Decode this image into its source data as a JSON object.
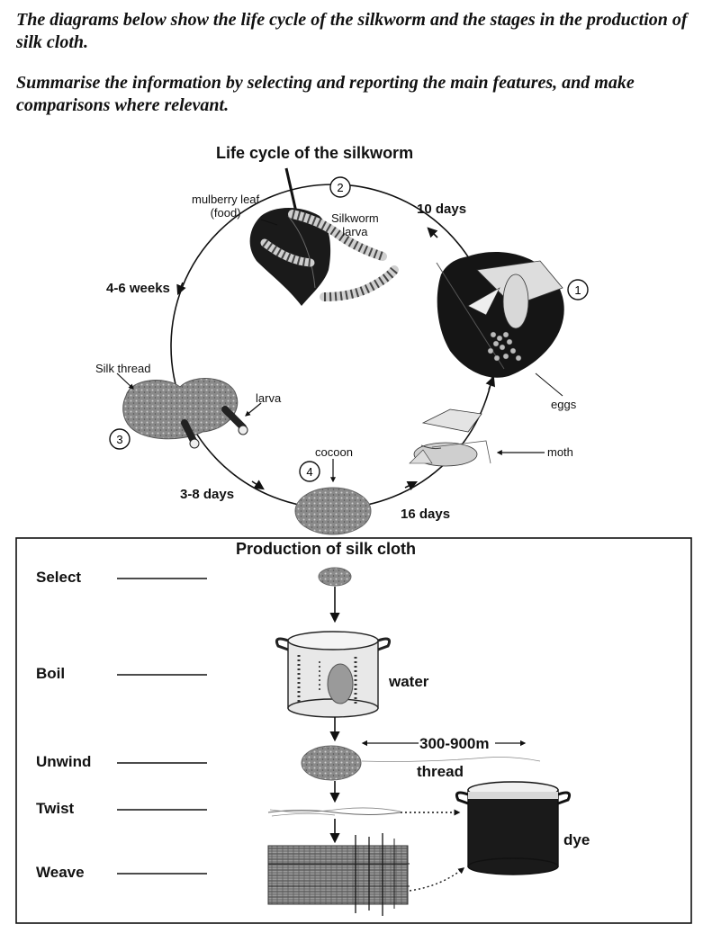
{
  "prompt": {
    "line1": "The diagrams below show the life cycle of the silkworm and the stages in the production of silk cloth.",
    "line2": "Summarise the information by selecting and reporting the main features, and make comparisons where relevant."
  },
  "life_cycle": {
    "title": "Life cycle of the silkworm",
    "stage_numbers": [
      "1",
      "2",
      "3",
      "4"
    ],
    "durations": {
      "eggs_to_larva": "10 days",
      "larva_to_thread": "4-6 weeks",
      "thread_to_cocoon": "3-8 days",
      "cocoon_to_moth": "16 days"
    },
    "labels": {
      "mulberry_leaf": "mulberry leaf\n(food)",
      "silkworm_larva": "Silkworm\nlarva",
      "eggs": "eggs",
      "moth": "moth",
      "silk_thread": "Silk thread",
      "larva": "larva",
      "cocoon": "cocoon"
    }
  },
  "production": {
    "title": "Production of silk cloth",
    "steps": [
      "Select",
      "Boil",
      "Unwind",
      "Twist",
      "Weave"
    ],
    "labels": {
      "water": "water",
      "thread_length": "300-900m",
      "thread": "thread",
      "dye": "dye"
    }
  }
}
